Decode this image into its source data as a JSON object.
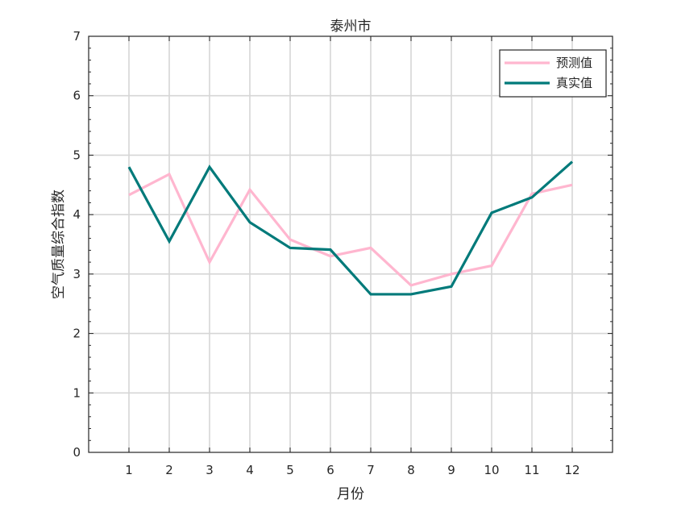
{
  "chart_data": {
    "type": "line",
    "title": "泰州市",
    "xlabel": "月份",
    "ylabel": "空气质量综合指数",
    "categories": [
      "1",
      "2",
      "3",
      "4",
      "5",
      "6",
      "7",
      "8",
      "9",
      "10",
      "11",
      "12"
    ],
    "x": [
      1,
      2,
      3,
      4,
      5,
      6,
      7,
      8,
      9,
      10,
      11,
      12
    ],
    "xlim": [
      0,
      13
    ],
    "ylim": [
      0,
      7
    ],
    "yticks": [
      0,
      1,
      2,
      3,
      4,
      5,
      6,
      7
    ],
    "grid": true,
    "legend_position": "top-right",
    "series": [
      {
        "name": "预测值",
        "color": "#FFB6CF",
        "values": [
          4.33,
          4.68,
          3.2,
          4.42,
          3.58,
          3.3,
          3.44,
          2.81,
          3.0,
          3.14,
          4.35,
          4.5
        ]
      },
      {
        "name": "真实值",
        "color": "#007A7A",
        "values": [
          4.8,
          3.55,
          4.8,
          3.87,
          3.44,
          3.41,
          2.66,
          2.66,
          2.79,
          4.03,
          4.29,
          4.89
        ]
      }
    ]
  }
}
